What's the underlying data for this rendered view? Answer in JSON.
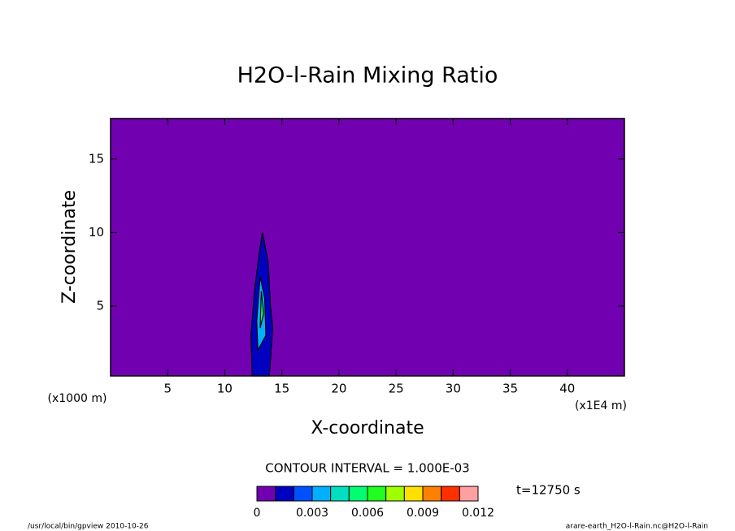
{
  "chart_data": {
    "type": "contour",
    "title": "H2O-l-Rain Mixing Ratio",
    "x_label": "X-coordinate",
    "y_label": "Z-coordinate",
    "x_unit": "(x1E4 m)",
    "y_unit": "(x1000 m)",
    "xlim": [
      0,
      45
    ],
    "ylim": [
      0.25,
      17.75
    ],
    "xticks": [
      5,
      10,
      15,
      20,
      25,
      30,
      35,
      40
    ],
    "yticks": [
      5,
      10,
      15
    ],
    "background_level": 0,
    "regions": [
      {
        "level": 0.001,
        "x": [
          12.4,
          12.3,
          12.6,
          13.0,
          13.3,
          13.8,
          14.0,
          14.2,
          13.9
        ],
        "y": [
          0.25,
          3,
          6,
          8.5,
          10,
          8,
          5,
          3.5,
          0.25
        ]
      },
      {
        "level": 0.003,
        "x": [
          12.9,
          12.8,
          13.1,
          13.5,
          13.6
        ],
        "y": [
          2,
          4,
          7,
          5.5,
          3
        ]
      },
      {
        "level": 0.005,
        "x": [
          13.1,
          13.2,
          13.4
        ],
        "y": [
          3.5,
          6,
          4.5
        ]
      }
    ],
    "contour_interval": "CONTOUR INTERVAL = 1.000E-03",
    "time": "t=12750 s",
    "colorbar": {
      "levels": [
        0,
        0.001,
        0.002,
        0.003,
        0.004,
        0.005,
        0.006,
        0.007,
        0.008,
        0.009,
        0.01,
        0.011,
        0.012
      ],
      "colors": [
        "#7000b0",
        "#0000c0",
        "#0050ff",
        "#00b0ff",
        "#00e0c0",
        "#00ff70",
        "#20ff20",
        "#a0ff00",
        "#ffe000",
        "#ff8000",
        "#ff3000",
        "#ffa0a0"
      ],
      "ticks": [
        0,
        0.003,
        0.006,
        0.009,
        0.012
      ]
    },
    "footer_left": "/usr/local/bin/gpview  2010-10-26",
    "footer_right": "arare-earth_H2O-l-Rain.nc@H2O-l-Rain"
  }
}
